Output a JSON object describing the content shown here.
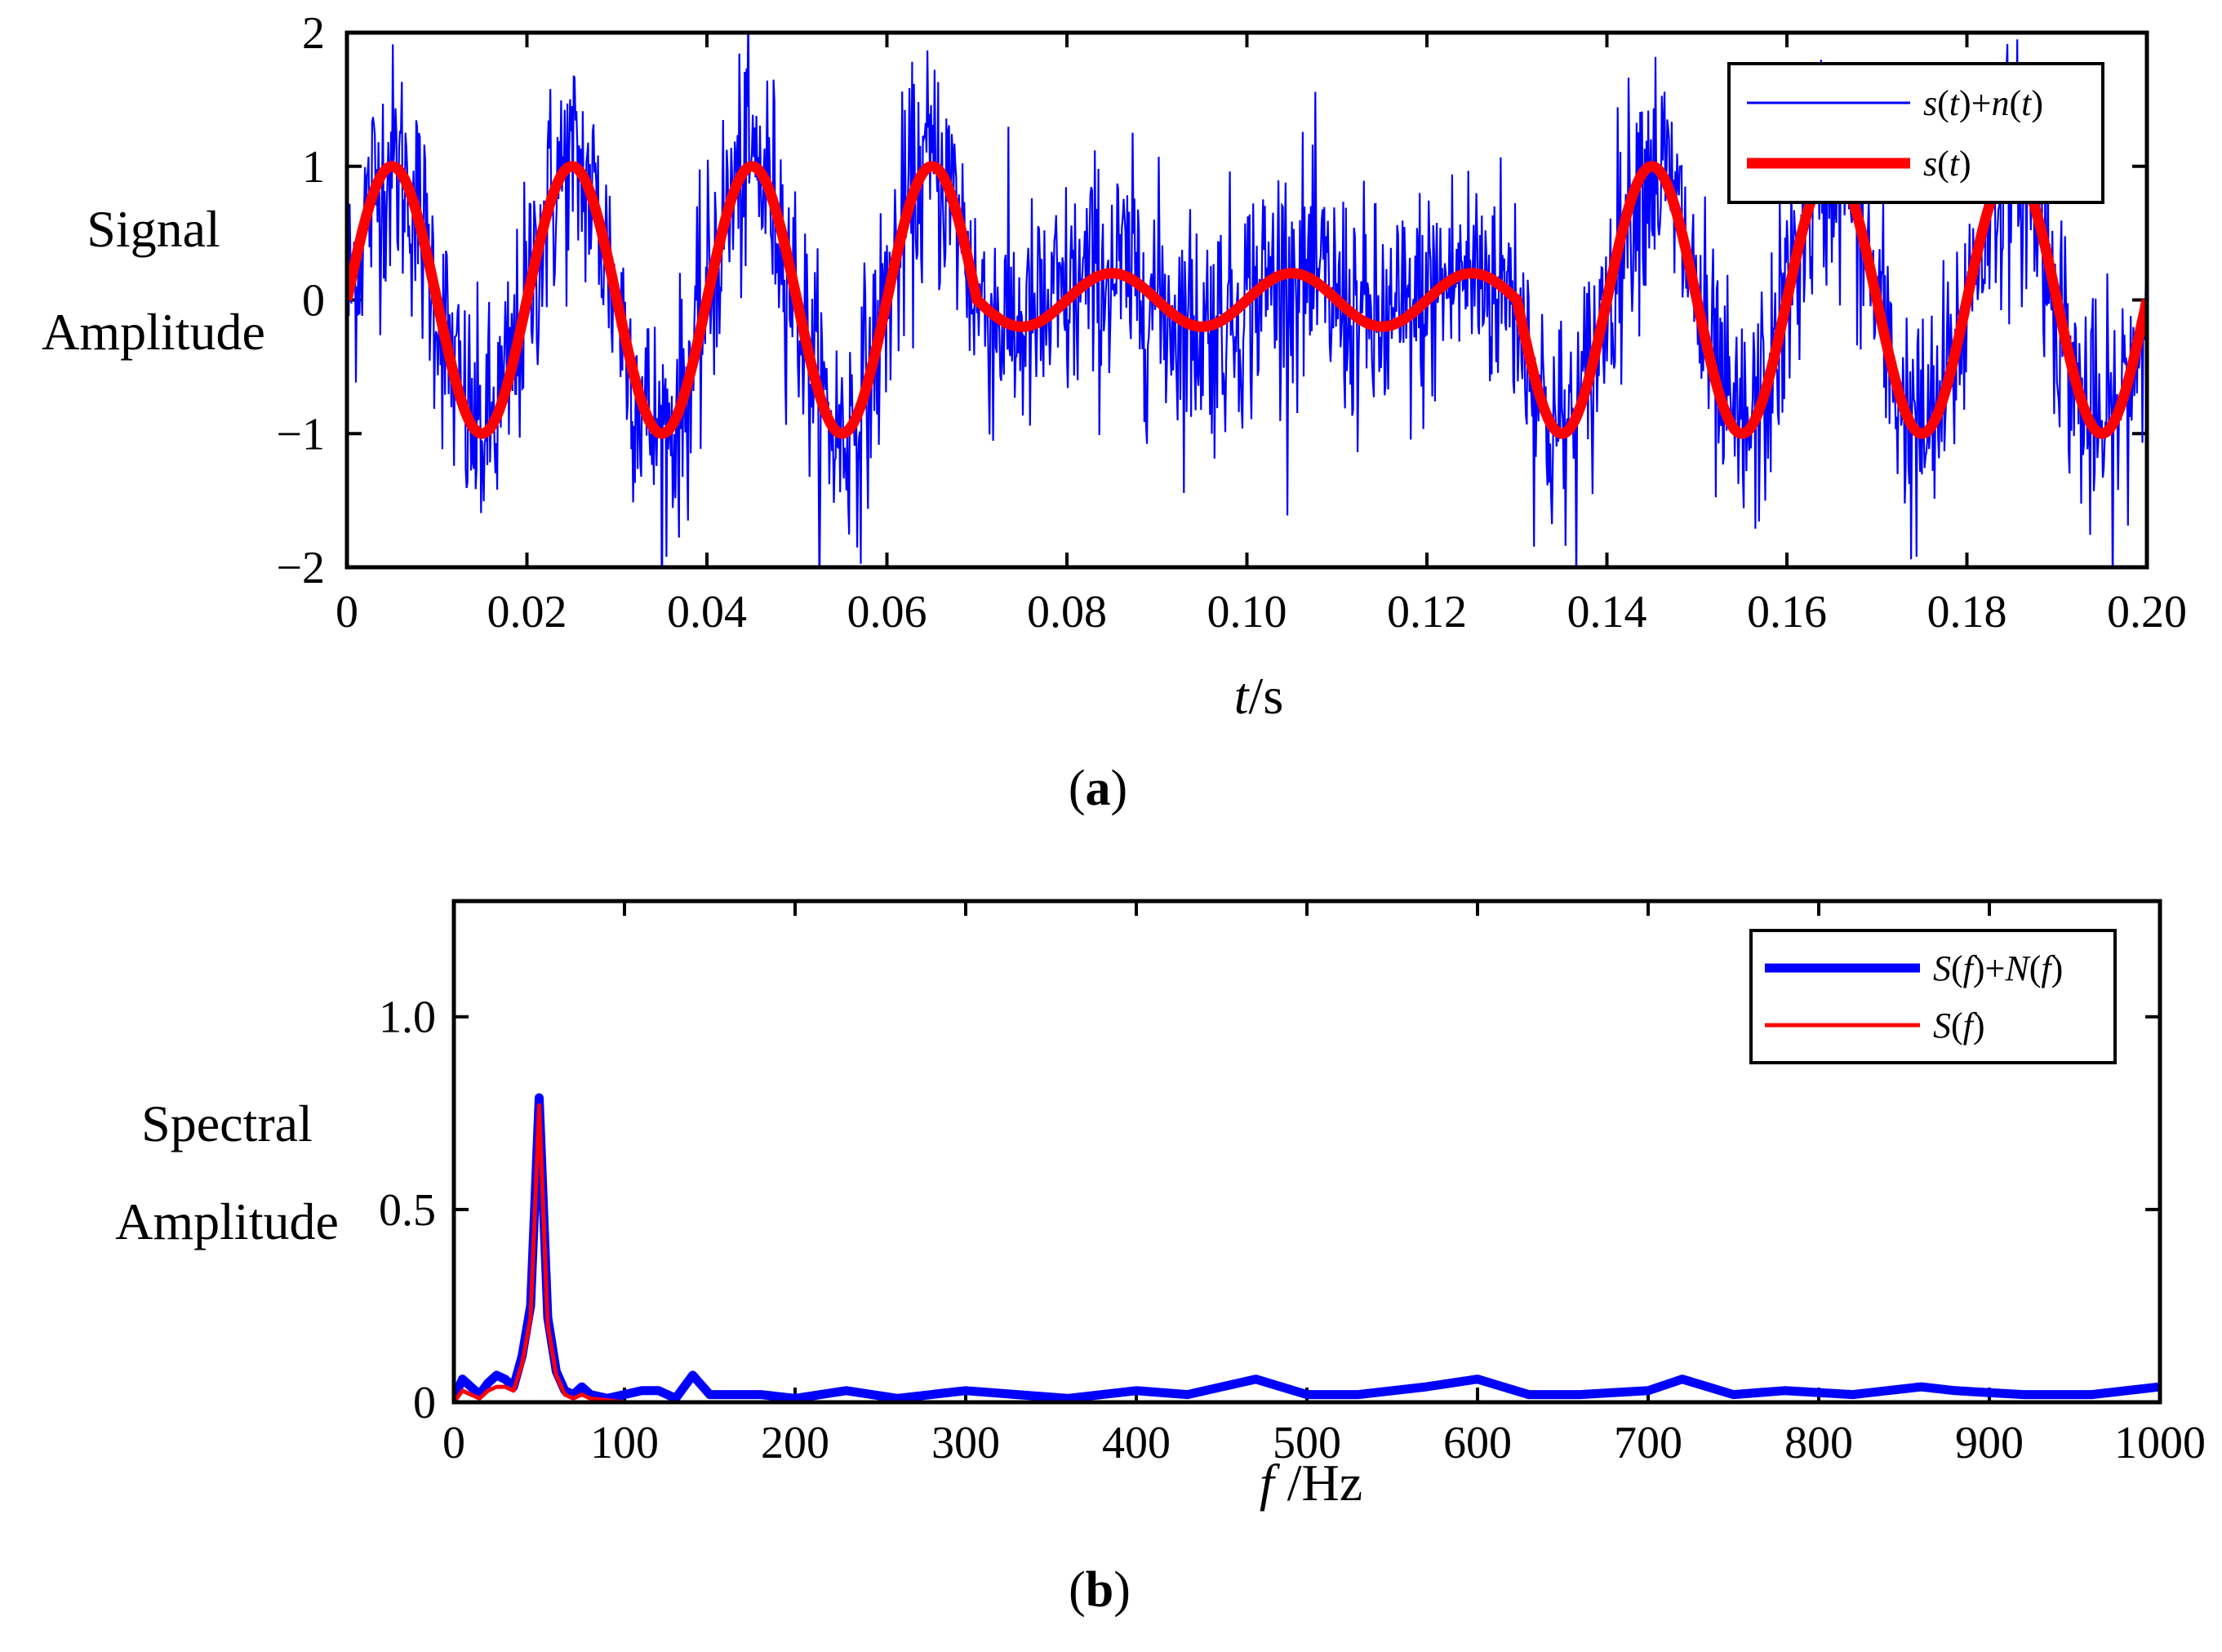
{
  "chart_data": [
    {
      "type": "line",
      "panel_label": "a",
      "ylabel_lines": [
        "Signal",
        "Amplitude"
      ],
      "xlabel_var": "t",
      "xlabel_unit": "/s",
      "xlim": [
        0,
        0.2
      ],
      "ylim": [
        -2,
        2
      ],
      "xticks": [
        0,
        0.02,
        0.04,
        0.06,
        0.08,
        0.1,
        0.12,
        0.14,
        0.16,
        0.18,
        0.2
      ],
      "xtick_labels": [
        "0",
        "0.02",
        "0.04",
        "0.06",
        "0.08",
        "0.10",
        "0.12",
        "0.14",
        "0.16",
        "0.18",
        "0.20"
      ],
      "yticks": [
        -2,
        -1,
        0,
        1,
        2
      ],
      "ytick_labels": [
        "−2",
        "−1",
        "0",
        "1",
        "2"
      ],
      "legend_position": "top-right",
      "series": [
        {
          "name": "s(t)+n(t)",
          "legend_parts": [
            [
              "s",
              "i"
            ],
            [
              "(",
              "n"
            ],
            [
              "t",
              "i"
            ],
            [
              ")+",
              "n"
            ],
            [
              "n",
              "i"
            ],
            [
              "(",
              "n"
            ],
            [
              "t",
              "i"
            ],
            [
              ")",
              "n"
            ]
          ],
          "color": "#0000ff",
          "kind": "noisy",
          "noise_std": 0.45,
          "samples": 2000
        },
        {
          "name": "s(t)",
          "legend_parts": [
            [
              "s",
              "i"
            ],
            [
              "(",
              "n"
            ],
            [
              "t",
              "i"
            ],
            [
              ")",
              "n"
            ]
          ],
          "color": "#ff0000",
          "kind": "clean",
          "frequency_hz": 50,
          "amplitude_segments": [
            {
              "t_start": 0.0,
              "t_end": 0.07,
              "amplitude": 1.0
            },
            {
              "t_start": 0.07,
              "t_end": 0.13,
              "amplitude": 0.2
            },
            {
              "t_start": 0.13,
              "t_end": 0.2,
              "amplitude": 1.0
            }
          ]
        }
      ]
    },
    {
      "type": "line",
      "panel_label": "b",
      "ylabel_lines": [
        "Spectral",
        "Amplitude"
      ],
      "xlabel_var": "f",
      "xlabel_unit": " /Hz",
      "xlim": [
        0,
        1000
      ],
      "ylim": [
        0,
        1.3
      ],
      "xticks": [
        0,
        100,
        200,
        300,
        400,
        500,
        600,
        700,
        800,
        900,
        1000
      ],
      "xtick_labels": [
        "0",
        "100",
        "200",
        "300",
        "400",
        "500",
        "600",
        "700",
        "800",
        "900",
        "1000"
      ],
      "yticks": [
        0,
        0.5,
        1.0
      ],
      "ytick_labels": [
        "0",
        "0.5",
        "1.0"
      ],
      "legend_position": "top-right",
      "series": [
        {
          "name": "S(f)+N(f)",
          "legend_parts": [
            [
              "S",
              "i"
            ],
            [
              "(",
              "n"
            ],
            [
              "f",
              "i"
            ],
            [
              ")+",
              "n"
            ],
            [
              "N",
              "i"
            ],
            [
              "(",
              "n"
            ],
            [
              "f",
              "i"
            ],
            [
              ")",
              "n"
            ]
          ],
          "color": "#0000ff",
          "x": [
            0,
            5,
            10,
            15,
            20,
            25,
            30,
            35,
            40,
            45,
            50,
            55,
            60,
            65,
            70,
            75,
            80,
            90,
            100,
            110,
            120,
            130,
            140,
            150,
            160,
            180,
            200,
            230,
            260,
            300,
            330,
            360,
            400,
            430,
            470,
            500,
            530,
            570,
            600,
            630,
            660,
            700,
            720,
            750,
            780,
            820,
            860,
            880,
            920,
            960,
            1000
          ],
          "y": [
            0.01,
            0.06,
            0.04,
            0.02,
            0.05,
            0.07,
            0.06,
            0.04,
            0.12,
            0.25,
            0.79,
            0.22,
            0.08,
            0.03,
            0.02,
            0.04,
            0.02,
            0.01,
            0.02,
            0.03,
            0.03,
            0.01,
            0.07,
            0.02,
            0.02,
            0.02,
            0.01,
            0.03,
            0.01,
            0.03,
            0.02,
            0.01,
            0.03,
            0.02,
            0.06,
            0.02,
            0.02,
            0.04,
            0.06,
            0.02,
            0.02,
            0.03,
            0.06,
            0.02,
            0.03,
            0.02,
            0.04,
            0.03,
            0.02,
            0.02,
            0.04
          ]
        },
        {
          "name": "S(f)",
          "legend_parts": [
            [
              "S",
              "i"
            ],
            [
              "(",
              "n"
            ],
            [
              "f",
              "i"
            ],
            [
              ")",
              "n"
            ]
          ],
          "color": "#ff0000",
          "x": [
            0,
            5,
            10,
            15,
            20,
            25,
            30,
            35,
            40,
            45,
            50,
            55,
            60,
            65,
            70,
            75,
            80,
            90,
            100,
            120,
            150,
            200,
            1000
          ],
          "y": [
            0.0,
            0.03,
            0.02,
            0.01,
            0.03,
            0.04,
            0.04,
            0.03,
            0.1,
            0.22,
            0.77,
            0.2,
            0.07,
            0.02,
            0.01,
            0.02,
            0.01,
            0.005,
            0.0,
            0.0,
            0.0,
            0.0,
            0.0
          ]
        }
      ]
    }
  ]
}
